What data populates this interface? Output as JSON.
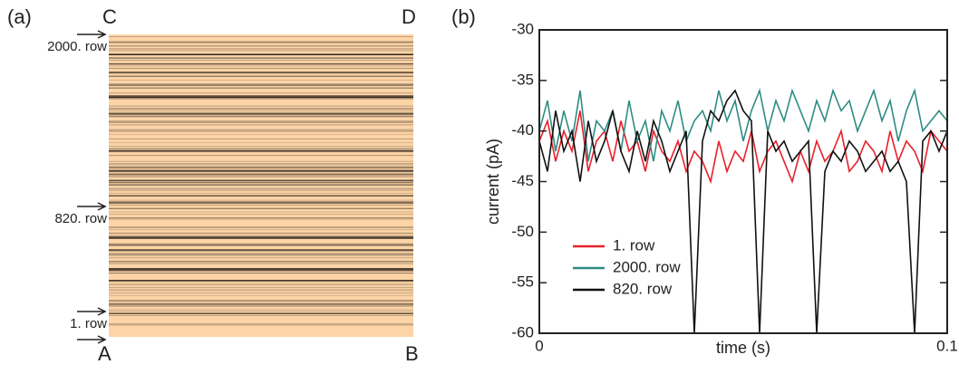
{
  "chart_data": [
    {
      "type": "image",
      "panel_label": "(a)",
      "corner_labels": {
        "top_left": "C",
        "top_right": "D",
        "bottom_left": "A",
        "bottom_right": "B"
      },
      "row_labels": [
        "2000. row",
        "820. row",
        "1. row"
      ]
    },
    {
      "type": "line",
      "panel_label": "(b)",
      "xlabel": "time (s)",
      "ylabel": "current (pA)",
      "xlim": [
        0,
        0.1
      ],
      "ylim": [
        -60,
        -30
      ],
      "xticks": [
        0,
        0.1
      ],
      "yticks": [
        -60,
        -55,
        -50,
        -45,
        -40,
        -35,
        -30
      ],
      "x": [
        0,
        0.002,
        0.004,
        0.006,
        0.008,
        0.01,
        0.012,
        0.014,
        0.016,
        0.018,
        0.02,
        0.022,
        0.024,
        0.026,
        0.028,
        0.03,
        0.032,
        0.034,
        0.036,
        0.038,
        0.04,
        0.042,
        0.044,
        0.046,
        0.048,
        0.05,
        0.052,
        0.054,
        0.056,
        0.058,
        0.06,
        0.062,
        0.064,
        0.066,
        0.068,
        0.07,
        0.072,
        0.074,
        0.076,
        0.078,
        0.08,
        0.082,
        0.084,
        0.086,
        0.088,
        0.09,
        0.092,
        0.094,
        0.096,
        0.098,
        0.1
      ],
      "series": [
        {
          "name": "1. row",
          "color": "#e8202a",
          "values": [
            -41,
            -39,
            -43,
            -40,
            -42,
            -38,
            -44,
            -41,
            -40,
            -43,
            -39,
            -42,
            -41,
            -44,
            -40,
            -42,
            -43,
            -41,
            -44,
            -42,
            -43,
            -45,
            -41,
            -44,
            -42,
            -43,
            -40,
            -44,
            -42,
            -41,
            -43,
            -45,
            -42,
            -44,
            -41,
            -43,
            -42,
            -40,
            -44,
            -43,
            -41,
            -42,
            -44,
            -40,
            -43,
            -41,
            -42,
            -44,
            -40,
            -41,
            -42
          ]
        },
        {
          "name": "2000. row",
          "color": "#2e8c84",
          "values": [
            -40,
            -37,
            -42,
            -38,
            -41,
            -36,
            -43,
            -39,
            -40,
            -38,
            -42,
            -37,
            -41,
            -39,
            -43,
            -38,
            -40,
            -37,
            -41,
            -39,
            -38,
            -40,
            -36,
            -39,
            -37,
            -41,
            -38,
            -36,
            -40,
            -37,
            -39,
            -36,
            -38,
            -40,
            -37,
            -39,
            -36,
            -38,
            -37,
            -40,
            -38,
            -36,
            -39,
            -37,
            -41,
            -38,
            -36,
            -40,
            -39,
            -38,
            -39
          ]
        },
        {
          "name": "820. row",
          "color": "#111111",
          "values": [
            -41,
            -44,
            -38,
            -42,
            -40,
            -45,
            -39,
            -43,
            -41,
            -38,
            -42,
            -44,
            -40,
            -43,
            -39,
            -41,
            -44,
            -42,
            -40,
            -60,
            -41,
            -38,
            -39,
            -37,
            -36,
            -38,
            -39,
            -60,
            -40,
            -42,
            -41,
            -43,
            -42,
            -41,
            -60,
            -44,
            -42,
            -43,
            -41,
            -42,
            -44,
            -43,
            -42,
            -44,
            -43,
            -45,
            -60,
            -41,
            -40,
            -42,
            -40
          ]
        }
      ]
    }
  ]
}
